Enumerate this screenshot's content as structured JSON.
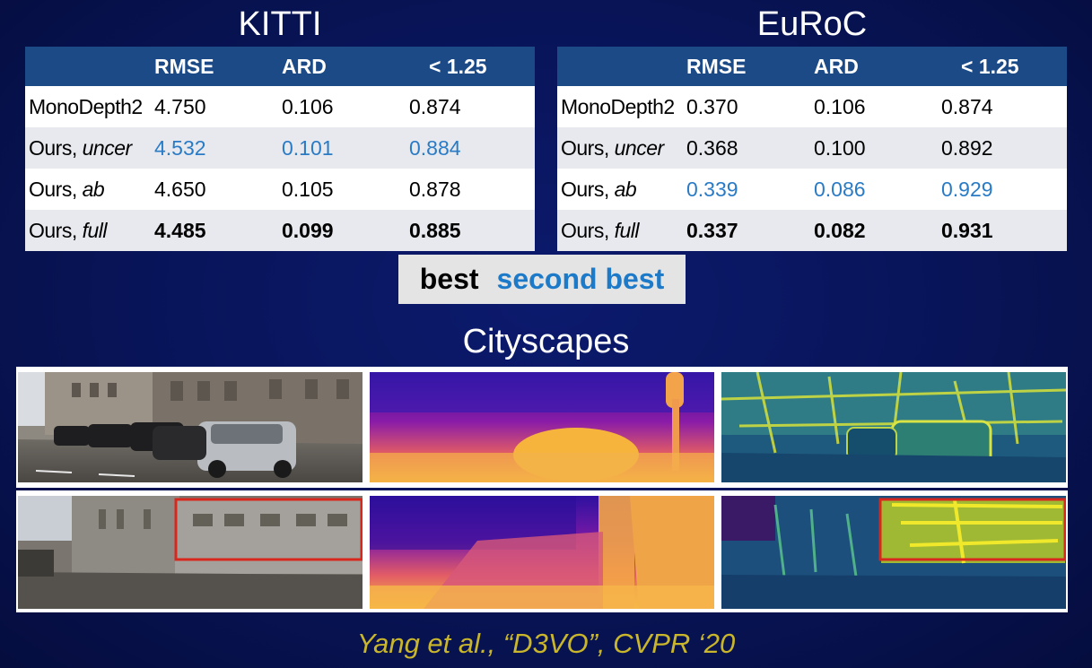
{
  "tables": [
    {
      "title": "KITTI",
      "headers": [
        "",
        "RMSE",
        "ARD",
        "< 1.25"
      ],
      "rows": [
        {
          "method": "MonoDepth2",
          "variant": "",
          "rmse": "4.750",
          "ard": "0.106",
          "acc": "0.874",
          "style": "normal"
        },
        {
          "method": "Ours, ",
          "variant": "uncer",
          "rmse": "4.532",
          "ard": "0.101",
          "acc": "0.884",
          "style": "second"
        },
        {
          "method": "Ours, ",
          "variant": "ab",
          "rmse": "4.650",
          "ard": "0.105",
          "acc": "0.878",
          "style": "normal"
        },
        {
          "method": "Ours, ",
          "variant": "full",
          "rmse": "4.485",
          "ard": "0.099",
          "acc": "0.885",
          "style": "best"
        }
      ]
    },
    {
      "title": "EuRoC",
      "headers": [
        "",
        "RMSE",
        "ARD",
        "< 1.25"
      ],
      "rows": [
        {
          "method": "MonoDepth2",
          "variant": "",
          "rmse": "0.370",
          "ard": "0.106",
          "acc": "0.874",
          "style": "normal"
        },
        {
          "method": "Ours, ",
          "variant": "uncer",
          "rmse": "0.368",
          "ard": "0.100",
          "acc": "0.892",
          "style": "normal"
        },
        {
          "method": "Ours, ",
          "variant": "ab",
          "rmse": "0.339",
          "ard": "0.086",
          "acc": "0.929",
          "style": "second"
        },
        {
          "method": "Ours, ",
          "variant": "full",
          "rmse": "0.337",
          "ard": "0.082",
          "acc": "0.931",
          "style": "best"
        }
      ]
    }
  ],
  "legend": {
    "best": "best",
    "second_best": "second best"
  },
  "figure": {
    "title": "Cityscapes"
  },
  "citation": "Yang et al., “D3VO”, CVPR ‘20",
  "colors": {
    "header_bg": "#1b4a87",
    "second_best": "#2a7bc6",
    "citation": "#c9b62a",
    "highlight_box": "#d8281e"
  }
}
